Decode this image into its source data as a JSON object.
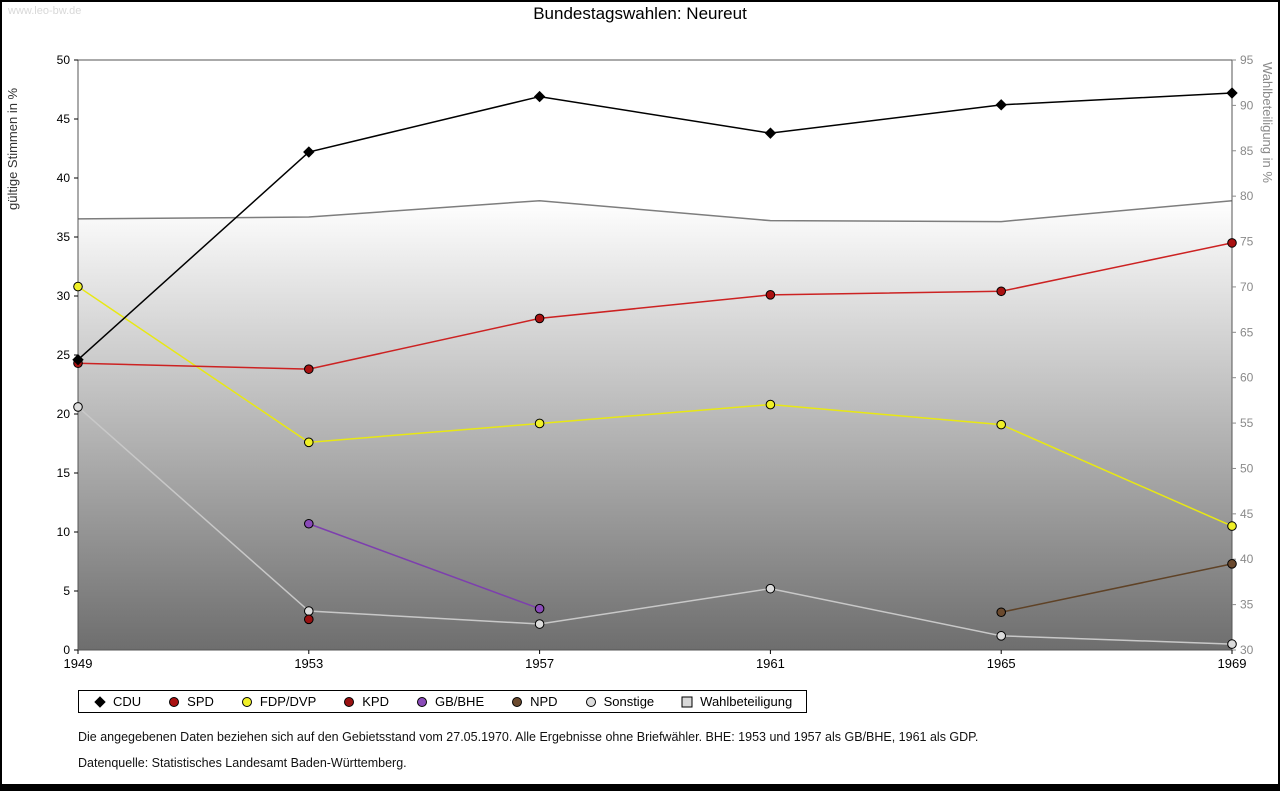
{
  "page": {
    "watermark": "www.leo-bw.de",
    "title": "Bundestagswahlen: Neureut",
    "footnote_gebietsstand": "Die angegebenen Daten beziehen sich auf den Gebietsstand vom 27.05.1970. Alle Ergebnisse ohne Briefwähler. BHE: 1953 und 1957 als GB/BHE, 1961 als GDP.",
    "footnote_datenquelle": "Datenquelle: Statistisches Landesamt Baden-Württemberg."
  },
  "chart_data": {
    "type": "line",
    "x": [
      1949,
      1953,
      1957,
      1961,
      1965,
      1969
    ],
    "left_axis": {
      "label": "gültige Stimmen in %",
      "min": 0,
      "max": 50,
      "tick_step": 5
    },
    "right_axis": {
      "label": "Wahlbeteiligung in %",
      "min": 30,
      "max": 95,
      "tick_step": 5
    },
    "grid": false,
    "legend_position": "bottom",
    "colors": {
      "area_gradient_top": "#ffffff",
      "area_gradient_bottom": "#6e6e6e",
      "plot_border": "#555555",
      "right_axis_text": "#8a8a8a"
    },
    "series": [
      {
        "name": "CDU",
        "axis": "left",
        "marker": "diamond",
        "color": "#000000",
        "marker_fill": "#000000",
        "values": [
          24.6,
          42.2,
          46.9,
          43.8,
          46.2,
          47.2
        ]
      },
      {
        "name": "SPD",
        "axis": "left",
        "marker": "circle",
        "color": "#cc2222",
        "marker_fill": "#aa1111",
        "values": [
          24.3,
          23.8,
          28.1,
          30.1,
          30.4,
          34.5
        ]
      },
      {
        "name": "FDP/DVP",
        "axis": "left",
        "marker": "circle",
        "color": "#e8e813",
        "marker_fill": "#f0f028",
        "values": [
          30.8,
          17.6,
          19.2,
          20.8,
          19.1,
          10.5
        ]
      },
      {
        "name": "KPD",
        "axis": "left",
        "marker": "circle",
        "color": "#991111",
        "marker_fill": "#991111",
        "values": [
          null,
          2.6,
          null,
          null,
          null,
          null
        ]
      },
      {
        "name": "GB/BHE",
        "axis": "left",
        "marker": "circle",
        "color": "#7d3fae",
        "marker_fill": "#8a4bb8",
        "values": [
          null,
          10.7,
          3.5,
          null,
          null,
          null
        ]
      },
      {
        "name": "NPD",
        "axis": "left",
        "marker": "circle",
        "color": "#5f4226",
        "marker_fill": "#6b4a2e",
        "values": [
          null,
          null,
          null,
          null,
          3.2,
          7.3
        ]
      },
      {
        "name": "Sonstige",
        "axis": "left",
        "marker": "circle",
        "color": "#c8c8c8",
        "marker_fill": "#dcdcdc",
        "values": [
          20.6,
          3.3,
          2.2,
          5.2,
          1.2,
          0.5
        ]
      },
      {
        "name": "Wahlbeteiligung",
        "axis": "right",
        "style": "area",
        "marker": "square",
        "color": "#7d7d7d",
        "marker_fill": "#d9d9d9",
        "values": [
          77.5,
          77.7,
          79.5,
          77.3,
          77.2,
          79.5
        ]
      }
    ]
  }
}
